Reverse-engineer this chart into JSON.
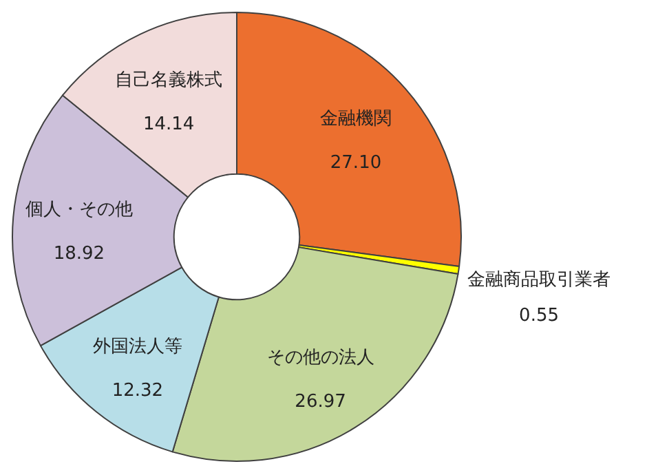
{
  "chart_data": {
    "type": "donut",
    "categories": [
      "金融機関",
      "金融商品取引業者",
      "その他の法人",
      "外国法人等",
      "個人・その他",
      "自己名義株式"
    ],
    "values": [
      27.1,
      0.55,
      26.97,
      12.32,
      18.92,
      14.14
    ],
    "colors": [
      "#ec6f2f",
      "#ffff00",
      "#c4d79b",
      "#b7dee8",
      "#ccc0da",
      "#f2dcdb"
    ],
    "value_labels": [
      "27.10",
      "0.55",
      "26.97",
      "12.32",
      "18.92",
      "14.14"
    ]
  }
}
